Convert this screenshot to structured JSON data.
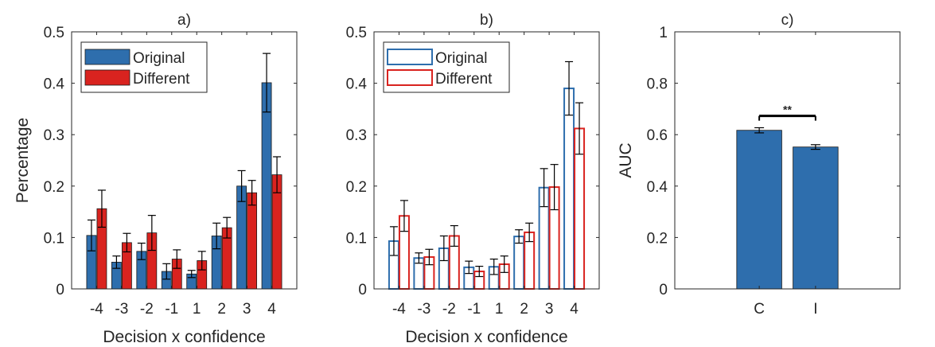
{
  "colors": {
    "blue": "#2e6ead",
    "red": "#d9231f",
    "axis": "#262626",
    "err": "#000000"
  },
  "chart_data": [
    {
      "type": "bar",
      "style": "filled",
      "title": "a)",
      "xlabel": "Decision x confidence",
      "ylabel": "Percentage",
      "categories": [
        "-4",
        "-3",
        "-2",
        "-1",
        "1",
        "2",
        "3",
        "4"
      ],
      "ylim": [
        0,
        0.5
      ],
      "yticks": [
        "0",
        "0.1",
        "0.2",
        "0.3",
        "0.4",
        "0.5"
      ],
      "legend_position": "top-left",
      "series": [
        {
          "name": "Original",
          "color": "#2e6ead",
          "values": [
            0.104,
            0.052,
            0.073,
            0.034,
            0.029,
            0.103,
            0.2,
            0.401
          ],
          "err": [
            0.03,
            0.012,
            0.016,
            0.015,
            0.007,
            0.025,
            0.03,
            0.057
          ]
        },
        {
          "name": "Different",
          "color": "#d9231f",
          "values": [
            0.156,
            0.09,
            0.109,
            0.058,
            0.055,
            0.119,
            0.187,
            0.222
          ],
          "err": [
            0.036,
            0.018,
            0.034,
            0.018,
            0.018,
            0.02,
            0.024,
            0.035
          ]
        }
      ]
    },
    {
      "type": "bar",
      "style": "outline",
      "title": "b)",
      "xlabel": "Decision x confidence",
      "ylabel": "",
      "categories": [
        "-4",
        "-3",
        "-2",
        "-1",
        "1",
        "2",
        "3",
        "4"
      ],
      "ylim": [
        0,
        0.5
      ],
      "yticks": [
        "0",
        "0.1",
        "0.2",
        "0.3",
        "0.4",
        "0.5"
      ],
      "legend_position": "top-left",
      "series": [
        {
          "name": "Original",
          "color": "#2e6ead",
          "values": [
            0.093,
            0.06,
            0.079,
            0.042,
            0.043,
            0.102,
            0.197,
            0.39
          ],
          "err": [
            0.028,
            0.01,
            0.024,
            0.012,
            0.015,
            0.013,
            0.037,
            0.052
          ]
        },
        {
          "name": "Different",
          "color": "#d9231f",
          "values": [
            0.142,
            0.062,
            0.103,
            0.034,
            0.048,
            0.11,
            0.198,
            0.312
          ],
          "err": [
            0.03,
            0.015,
            0.02,
            0.01,
            0.016,
            0.018,
            0.044,
            0.05
          ]
        }
      ]
    },
    {
      "type": "bar",
      "style": "filled",
      "title": "c)",
      "xlabel": "",
      "ylabel": "AUC",
      "categories": [
        "C",
        "I"
      ],
      "ylim": [
        0,
        1
      ],
      "yticks": [
        "0",
        "0.2",
        "0.4",
        "0.6",
        "0.8",
        "1"
      ],
      "series": [
        {
          "color": "#2e6ead",
          "values": [
            0.617,
            0.552
          ],
          "err": [
            0.01,
            0.009
          ]
        }
      ],
      "annotation": {
        "text": "**",
        "between": [
          "C",
          "I"
        ],
        "y": 0.673
      }
    }
  ]
}
